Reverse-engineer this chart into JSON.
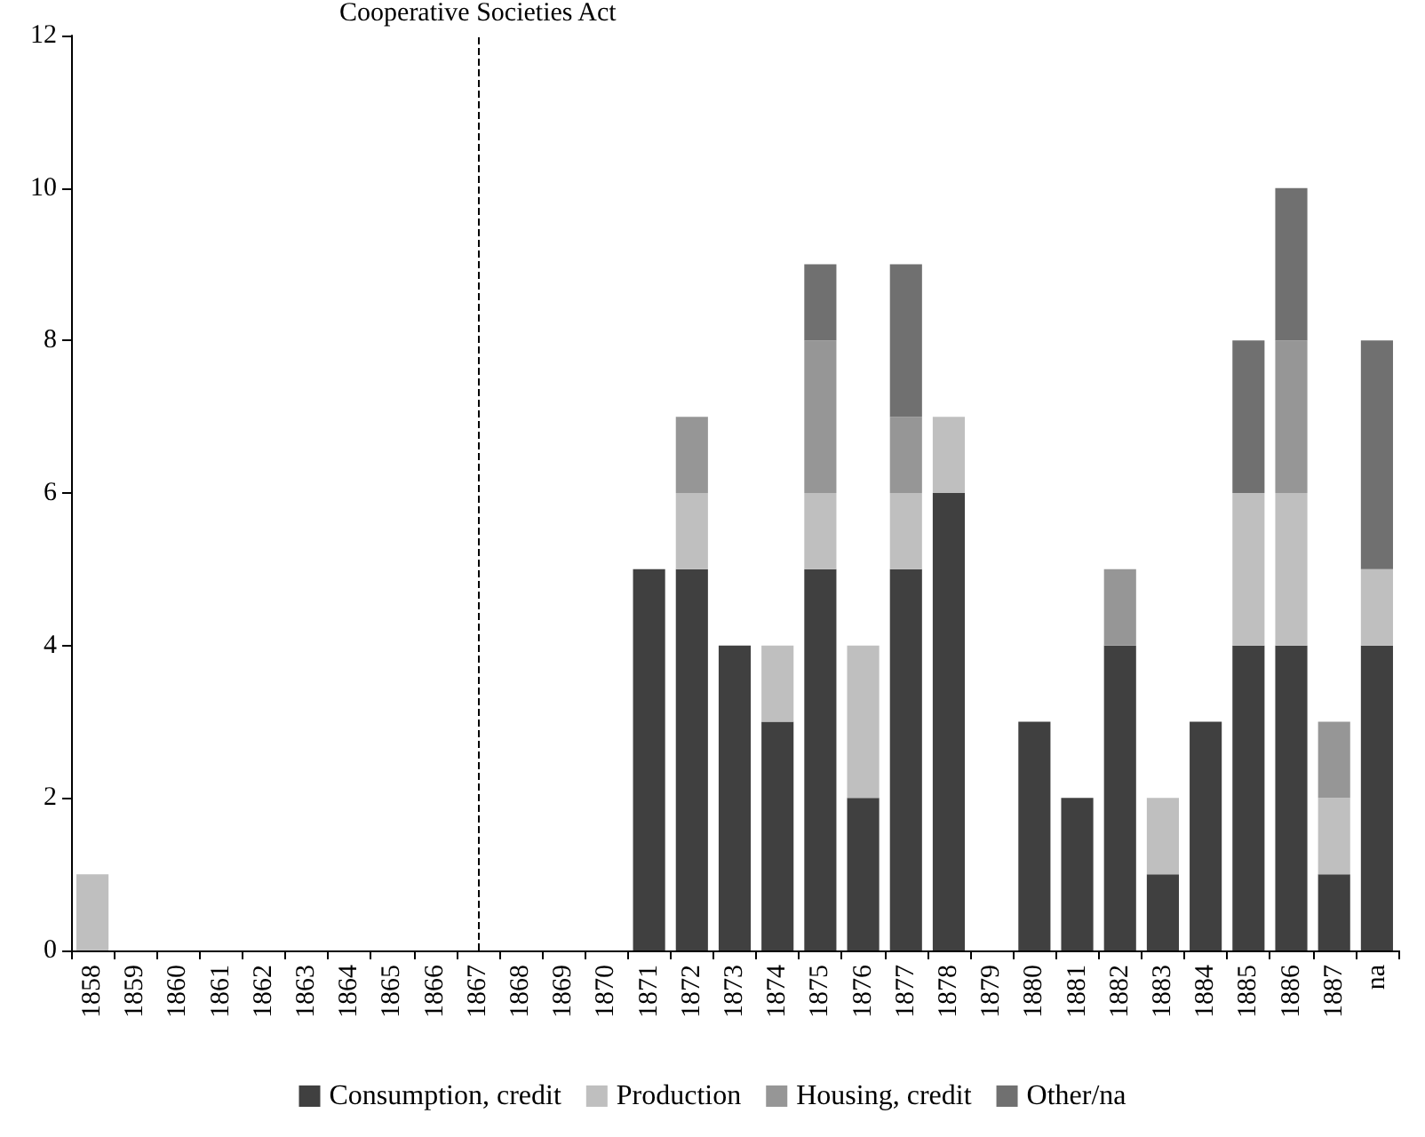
{
  "chart_data": {
    "type": "bar",
    "stacked": true,
    "categories": [
      "1858",
      "1859",
      "1860",
      "1861",
      "1862",
      "1863",
      "1864",
      "1865",
      "1866",
      "1867",
      "1868",
      "1869",
      "1870",
      "1871",
      "1872",
      "1873",
      "1874",
      "1875",
      "1876",
      "1877",
      "1878",
      "1879",
      "1880",
      "1881",
      "1882",
      "1883",
      "1884",
      "1885",
      "1886",
      "1887",
      "na"
    ],
    "series": [
      {
        "name": "Consumption, credit",
        "color": "#404040",
        "values": [
          0,
          0,
          0,
          0,
          0,
          0,
          0,
          0,
          0,
          0,
          0,
          0,
          0,
          5,
          5,
          4,
          3,
          5,
          2,
          5,
          6,
          0,
          3,
          2,
          4,
          1,
          3,
          4,
          4,
          1,
          4
        ]
      },
      {
        "name": "Production",
        "color": "#bfbfbf",
        "values": [
          1,
          0,
          0,
          0,
          0,
          0,
          0,
          0,
          0,
          0,
          0,
          0,
          0,
          0,
          1,
          0,
          1,
          1,
          2,
          1,
          1,
          0,
          0,
          0,
          0,
          1,
          0,
          2,
          2,
          1,
          1
        ]
      },
      {
        "name": "Housing, credit",
        "color": "#969696",
        "values": [
          0,
          0,
          0,
          0,
          0,
          0,
          0,
          0,
          0,
          0,
          0,
          0,
          0,
          0,
          1,
          0,
          0,
          2,
          0,
          1,
          0,
          0,
          0,
          0,
          1,
          0,
          0,
          0,
          2,
          1,
          0
        ]
      },
      {
        "name": "Other/na",
        "color": "#707070",
        "values": [
          0,
          0,
          0,
          0,
          0,
          0,
          0,
          0,
          0,
          0,
          0,
          0,
          0,
          0,
          0,
          0,
          0,
          1,
          0,
          2,
          0,
          0,
          0,
          0,
          0,
          0,
          0,
          2,
          2,
          0,
          3
        ]
      }
    ],
    "ylim": [
      0,
      12
    ],
    "yticks": [
      0,
      2,
      4,
      6,
      8,
      10,
      12
    ],
    "grid": false,
    "legend": "bottom",
    "ref_lines": [
      {
        "axis": "x",
        "value": "1867",
        "label": "Cooperative Societies Act",
        "line_style": "dashed",
        "color": "#000000"
      }
    ]
  }
}
